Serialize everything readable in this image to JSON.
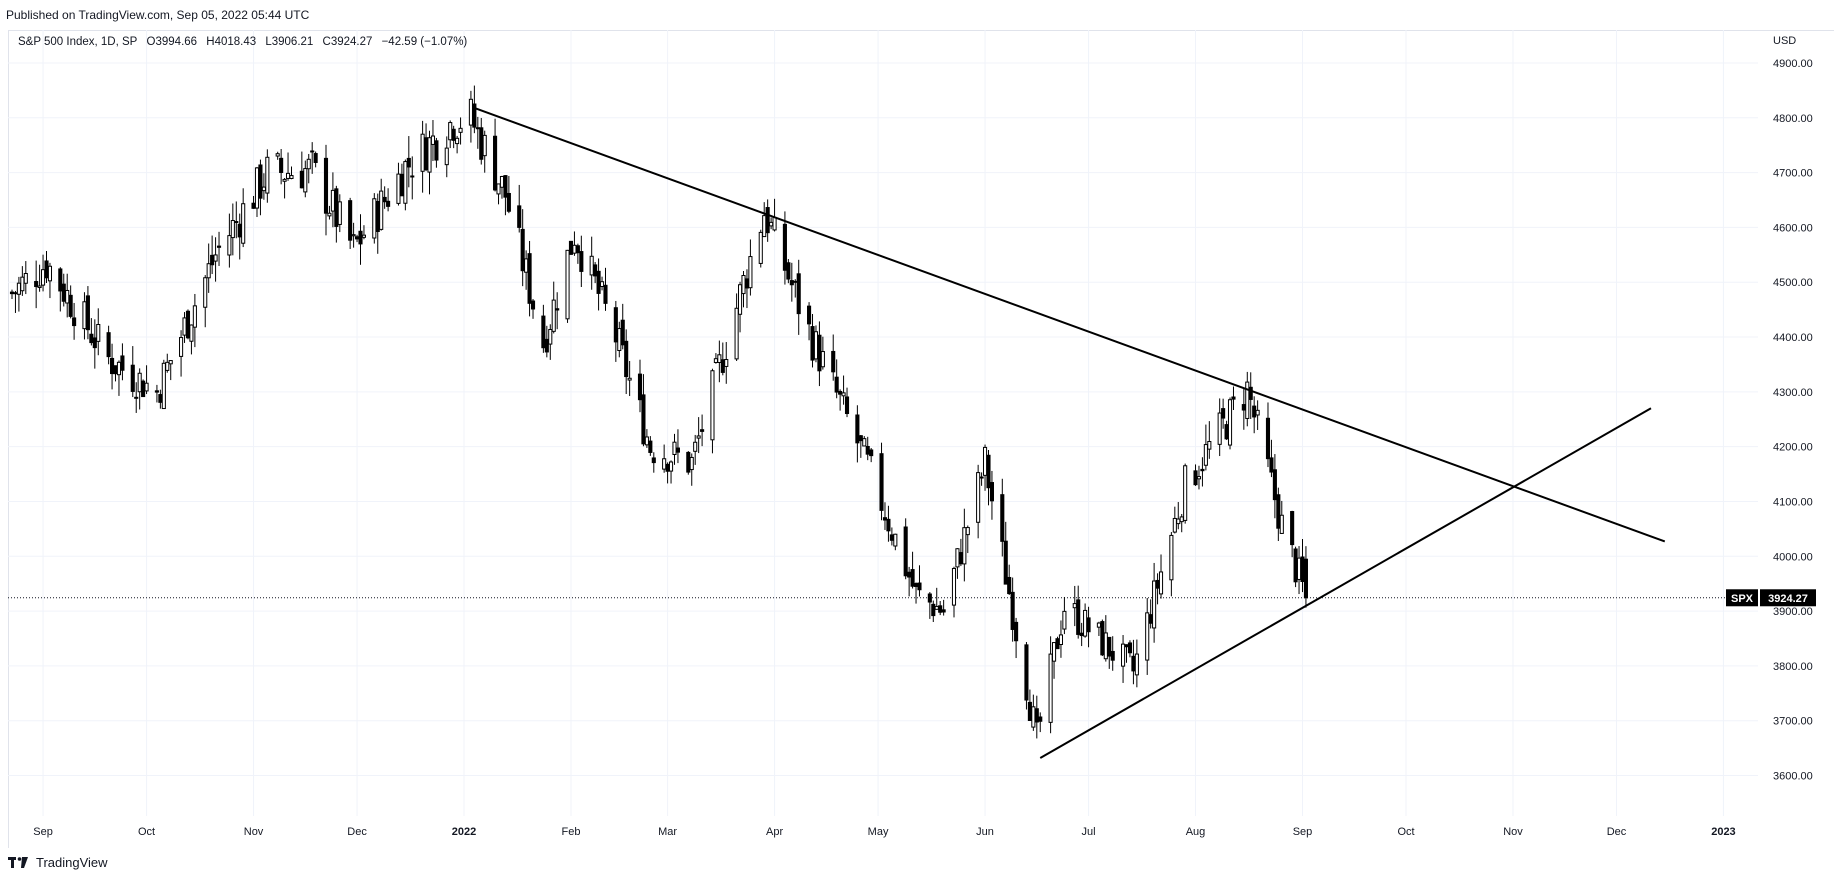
{
  "publish_note": "Published on TradingView.com, Sep 05, 2022 05:44 UTC",
  "legend": {
    "symbol": "S&P 500 Index, 1D, SP",
    "open": "O3994.66",
    "high": "H4018.43",
    "low": "L3906.21",
    "close": "C3924.27",
    "change": "−42.59 (−1.07%)"
  },
  "footer_brand": "TradingView",
  "price_tag": {
    "symbol": "SPX",
    "value": "3924.27"
  },
  "colors": {
    "candle": "#000000",
    "background": "#ffffff",
    "grid": "#f0f3fa",
    "tag_bg": "#000000"
  },
  "chart_data": {
    "type": "candlestick",
    "title": "S&P 500 Index, 1D, SP",
    "currency": "USD",
    "ylim": [
      3530,
      4950
    ],
    "y_ticks": [
      "3600.00",
      "3700.00",
      "3800.00",
      "3900.00",
      "4000.00",
      "4100.00",
      "4200.00",
      "4300.00",
      "4400.00",
      "4500.00",
      "4600.00",
      "4700.00",
      "4800.00",
      "4900.00"
    ],
    "x_ticks": [
      {
        "label": "Sep",
        "date": "2021-09-01",
        "bold": false
      },
      {
        "label": "Oct",
        "date": "2021-10-01",
        "bold": false
      },
      {
        "label": "Nov",
        "date": "2021-11-01",
        "bold": false
      },
      {
        "label": "Dec",
        "date": "2021-12-01",
        "bold": false
      },
      {
        "label": "2022",
        "date": "2022-01-01",
        "bold": true
      },
      {
        "label": "Feb",
        "date": "2022-02-01",
        "bold": false
      },
      {
        "label": "Mar",
        "date": "2022-03-01",
        "bold": false
      },
      {
        "label": "Apr",
        "date": "2022-04-01",
        "bold": false
      },
      {
        "label": "May",
        "date": "2022-05-01",
        "bold": false
      },
      {
        "label": "Jun",
        "date": "2022-06-01",
        "bold": false
      },
      {
        "label": "Jul",
        "date": "2022-07-01",
        "bold": false
      },
      {
        "label": "Aug",
        "date": "2022-08-01",
        "bold": false
      },
      {
        "label": "Sep",
        "date": "2022-09-01",
        "bold": false
      },
      {
        "label": "Oct",
        "date": "2022-10-01",
        "bold": false
      },
      {
        "label": "Nov",
        "date": "2022-11-01",
        "bold": false
      },
      {
        "label": "Dec",
        "date": "2022-12-01",
        "bold": false
      },
      {
        "label": "2023",
        "date": "2023-01-01",
        "bold": true
      }
    ],
    "last_price": 3924.27,
    "price_path": [
      {
        "date": "2021-08-23",
        "close": 4480
      },
      {
        "date": "2021-09-02",
        "close": 4535
      },
      {
        "date": "2021-09-20",
        "close": 4360
      },
      {
        "date": "2021-10-04",
        "close": 4300
      },
      {
        "date": "2021-10-21",
        "close": 4550
      },
      {
        "date": "2021-11-05",
        "close": 4700
      },
      {
        "date": "2021-11-18",
        "close": 4705
      },
      {
        "date": "2021-11-30",
        "close": 4560
      },
      {
        "date": "2021-12-15",
        "close": 4710
      },
      {
        "date": "2021-12-29",
        "close": 4795
      },
      {
        "date": "2022-01-03",
        "close": 4800
      },
      {
        "date": "2022-01-13",
        "close": 4660
      },
      {
        "date": "2022-01-24",
        "close": 4390
      },
      {
        "date": "2022-02-02",
        "close": 4590
      },
      {
        "date": "2022-02-14",
        "close": 4400
      },
      {
        "date": "2022-02-24",
        "close": 4200
      },
      {
        "date": "2022-03-08",
        "close": 4170
      },
      {
        "date": "2022-03-29",
        "close": 4630
      },
      {
        "date": "2022-04-11",
        "close": 4410
      },
      {
        "date": "2022-04-29",
        "close": 4150
      },
      {
        "date": "2022-05-12",
        "close": 3930
      },
      {
        "date": "2022-05-20",
        "close": 3900
      },
      {
        "date": "2022-06-01",
        "close": 4170
      },
      {
        "date": "2022-06-16",
        "close": 3666
      },
      {
        "date": "2022-06-24",
        "close": 3910
      },
      {
        "date": "2022-07-14",
        "close": 3790
      },
      {
        "date": "2022-07-29",
        "close": 4130
      },
      {
        "date": "2022-08-16",
        "close": 4305
      },
      {
        "date": "2022-08-26",
        "close": 4057
      },
      {
        "date": "2022-09-02",
        "close": 3924
      }
    ],
    "trendlines": [
      {
        "name": "upper",
        "from": {
          "date": "2022-01-04",
          "price": 4818
        },
        "to": {
          "date": "2022-12-15",
          "price": 4027
        }
      },
      {
        "name": "lower",
        "from": {
          "date": "2022-06-17",
          "price": 3632
        },
        "to": {
          "date": "2022-12-11",
          "price": 4270
        }
      }
    ],
    "grid": true
  }
}
